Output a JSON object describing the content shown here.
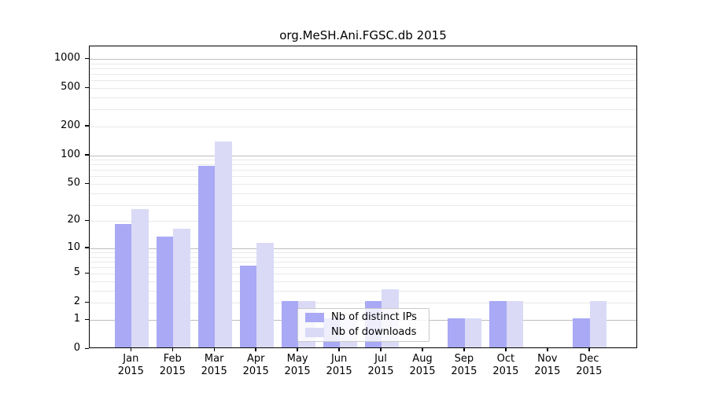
{
  "chart_data": {
    "type": "bar",
    "title": "org.MeSH.Ani.FGSC.db 2015",
    "categories": [
      "Jan",
      "Feb",
      "Mar",
      "Apr",
      "May",
      "Jun",
      "Jul",
      "Aug",
      "Sep",
      "Oct",
      "Nov",
      "Dec"
    ],
    "category_year": "2015",
    "series": [
      {
        "name": "Nb of distinct IPs",
        "color": "#a9a9f5",
        "values": [
          18,
          13,
          75,
          6,
          2,
          1,
          2,
          0,
          1,
          2,
          0,
          1
        ]
      },
      {
        "name": "Nb of downloads",
        "color": "#dadaf7",
        "values": [
          26,
          16,
          135,
          11,
          2,
          1,
          3,
          0,
          1,
          2,
          0,
          2
        ]
      }
    ],
    "yscale": "log1p",
    "ylim": [
      0,
      1000
    ],
    "yticks": [
      0,
      1,
      2,
      5,
      10,
      20,
      50,
      100,
      200,
      500,
      1000
    ],
    "grid": "horizontal",
    "legend_position": "lower-center"
  },
  "colors": {
    "major_grid": "#bdbdbd",
    "minor_grid": "#e9e9e9",
    "axis": "#000000",
    "background": "#ffffff"
  }
}
